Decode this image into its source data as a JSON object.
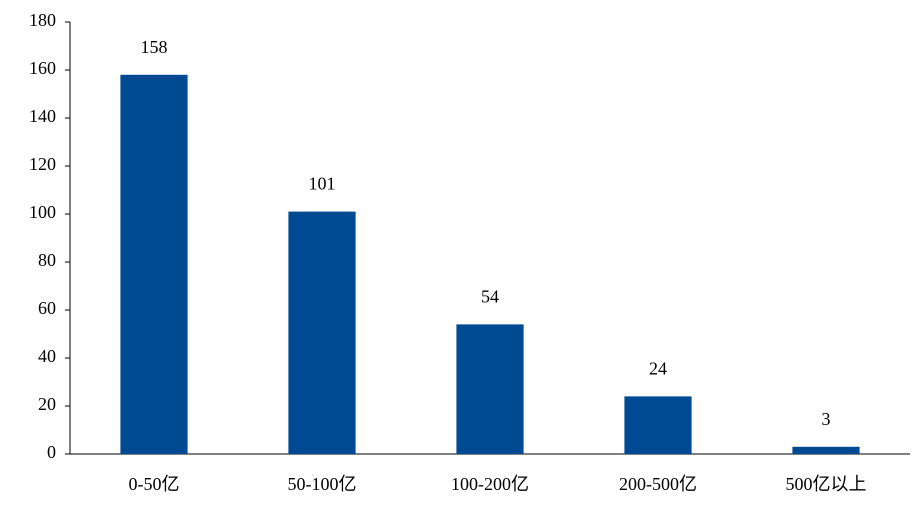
{
  "chart_data": {
    "type": "bar",
    "categories": [
      "0-50亿",
      "50-100亿",
      "100-200亿",
      "200-500亿",
      "500亿以上"
    ],
    "values": [
      158,
      101,
      54,
      24,
      3
    ],
    "color": "#004a93",
    "ylim": [
      0,
      180
    ],
    "yticks": [
      0,
      20,
      40,
      60,
      80,
      100,
      120,
      140,
      160,
      180
    ],
    "grid": false
  }
}
